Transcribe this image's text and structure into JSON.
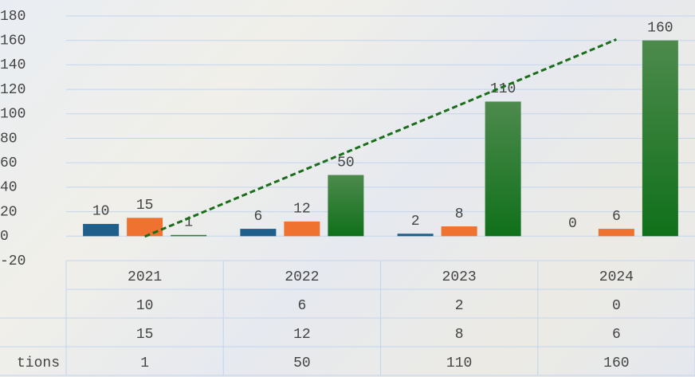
{
  "chart_data": {
    "type": "bar",
    "categories": [
      "2021",
      "2022",
      "2023",
      "2024"
    ],
    "series": [
      {
        "name": null,
        "color": "#1f5f8b",
        "values": [
          10,
          6,
          2,
          0
        ]
      },
      {
        "name": null,
        "color": "#ef7230",
        "values": [
          15,
          12,
          8,
          6
        ]
      },
      {
        "name": "tions",
        "color": "#1a741f",
        "values": [
          1,
          50,
          110,
          160
        ]
      }
    ],
    "ylim": [
      -20,
      180
    ],
    "yticks": [
      -20,
      0,
      20,
      40,
      60,
      80,
      100,
      120,
      140,
      160,
      180
    ],
    "grid": true,
    "data_labels": true,
    "data_table": true,
    "trendline": {
      "series": 2,
      "kind": "linear",
      "color": "#1a6e1a",
      "dash": true
    }
  }
}
